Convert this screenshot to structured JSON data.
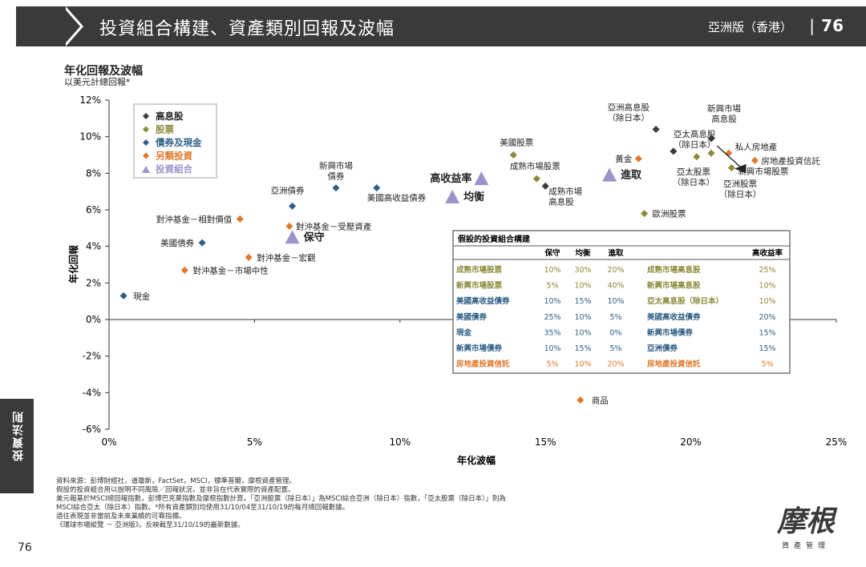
{
  "header": {
    "title": "投資組合構建、資產類別回報及波幅",
    "edition": "亞洲版（香港）",
    "separator": "|",
    "page_number": "76"
  },
  "side_tab": "投資法則",
  "footer_page": "76",
  "notes": [
    "資料來源：彭博財經社，道瓊斯，FactSet，MSCI，標準普爾，摩根資產管理。",
    "假設的投資組合用以說明不同風險／回報狀況，並非旨在代表實際的資產配置。",
    "美元報基於MSCI總回報指數，彭博巴克萊指數及摩根指數計算。「亞洲股票（除日本）」為MSCI綜合亞洲（除日本）指數，「亞太股票（除日本）」則為",
    "MSCI綜合亞太（除日本）指數。*所有資產類別均使用31/10/04至31/10/19的每月總回報數據。",
    "過往表現並非當前及未來業績的可靠指標。",
    "《環球市場縱覽 － 亞洲版》。反映截至31/10/19的最新數據。"
  ],
  "logo": {
    "main": "摩根",
    "sub": "資產管理"
  },
  "colors": {
    "high_div": "#3a3a3a",
    "equity": "#8a8a3a",
    "bonds_cash": "#2f5f86",
    "alternatives": "#e0782a",
    "portfolio": "#9c94c8",
    "header": "#3a3a3a"
  },
  "chart_data": {
    "type": "scatter",
    "title": "年化回報及波幅",
    "subtitle": "以美元計總回報*",
    "xlabel": "年化波幅",
    "ylabel": "年化回報",
    "xlim": [
      0,
      25
    ],
    "ylim": [
      -6,
      12
    ],
    "x_ticks": [
      "0%",
      "5%",
      "10%",
      "15%",
      "20%",
      "25%"
    ],
    "y_ticks": [
      "-6%",
      "-4%",
      "-2%",
      "0%",
      "2%",
      "4%",
      "6%",
      "8%",
      "10%",
      "12%"
    ],
    "legend": {
      "placement": "top-left",
      "items": [
        {
          "label": "高息股",
          "category": "high_div"
        },
        {
          "label": "股票",
          "category": "equity"
        },
        {
          "label": "債券及現金",
          "category": "bonds_cash"
        },
        {
          "label": "另類投資",
          "category": "alternatives"
        },
        {
          "label": "投資組合",
          "category": "portfolio"
        }
      ]
    },
    "points": [
      {
        "label": "現金",
        "x": 0.5,
        "y": 1.3,
        "category": "bonds_cash"
      },
      {
        "label": "美國債券",
        "x": 3.2,
        "y": 4.2,
        "category": "bonds_cash"
      },
      {
        "label": "亞洲債券",
        "x": 6.3,
        "y": 6.2,
        "category": "bonds_cash"
      },
      {
        "label": "新興市場\n債券",
        "x": 7.8,
        "y": 7.2,
        "category": "bonds_cash"
      },
      {
        "label": "美國高收益債券",
        "x": 9.2,
        "y": 7.2,
        "category": "bonds_cash"
      },
      {
        "label": "對沖基金－相對價值",
        "x": 4.5,
        "y": 5.5,
        "category": "alternatives"
      },
      {
        "label": "對沖基金－受壓資產",
        "x": 6.2,
        "y": 5.1,
        "category": "alternatives"
      },
      {
        "label": "對沖基金－宏觀",
        "x": 4.8,
        "y": 3.4,
        "category": "alternatives"
      },
      {
        "label": "對沖基金－市場中性",
        "x": 2.6,
        "y": 2.7,
        "category": "alternatives"
      },
      {
        "label": "黃金",
        "x": 18.2,
        "y": 8.8,
        "category": "alternatives"
      },
      {
        "label": "私人房地產",
        "x": 21.3,
        "y": 9.1,
        "category": "alternatives"
      },
      {
        "label": "房地產投資信託",
        "x": 22.2,
        "y": 8.7,
        "category": "alternatives"
      },
      {
        "label": "商品",
        "x": 16.2,
        "y": -4.4,
        "category": "alternatives"
      },
      {
        "label": "美國股票",
        "x": 13.9,
        "y": 9.0,
        "category": "equity"
      },
      {
        "label": "成熟市場股票",
        "x": 14.7,
        "y": 7.7,
        "category": "equity"
      },
      {
        "label": "歐洲股票",
        "x": 18.4,
        "y": 5.8,
        "category": "equity"
      },
      {
        "label": "亞太股票\n（除日本）",
        "x": 20.2,
        "y": 8.9,
        "category": "equity"
      },
      {
        "label": "新興市場股票",
        "x": 21.4,
        "y": 8.3,
        "category": "equity"
      },
      {
        "label": "亞洲股票\n（除日本）",
        "x": 20.7,
        "y": 9.1,
        "category": "equity"
      },
      {
        "label": "亞洲高息股\n（除日本）",
        "x": 18.8,
        "y": 10.4,
        "category": "high_div"
      },
      {
        "label": "亞太高息股\n（除日本）",
        "x": 19.4,
        "y": 9.2,
        "category": "high_div"
      },
      {
        "label": "新興市場\n高息股",
        "x": 20.7,
        "y": 9.9,
        "category": "high_div"
      },
      {
        "label": "成熟市場\n高息股",
        "x": 15.0,
        "y": 7.3,
        "category": "high_div"
      },
      {
        "label": "保守",
        "x": 6.3,
        "y": 4.5,
        "category": "portfolio"
      },
      {
        "label": "均衡",
        "x": 11.8,
        "y": 6.7,
        "category": "portfolio"
      },
      {
        "label": "進取",
        "x": 17.2,
        "y": 7.9,
        "category": "portfolio"
      },
      {
        "label": "高收益率",
        "x": 12.8,
        "y": 7.7,
        "category": "portfolio"
      }
    ],
    "table": {
      "title": "假設的投資組合構建",
      "headers": [
        "",
        "保守",
        "均衡",
        "進取",
        "",
        "高收益率"
      ],
      "rows": [
        {
          "name": "成熟市場股票",
          "c": "equity",
          "v": [
            "10%",
            "30%",
            "20%"
          ],
          "name2": "成熟市場高息股",
          "c2": "equity",
          "v2": "25%"
        },
        {
          "name": "新興市場股票",
          "c": "equity",
          "v": [
            "5%",
            "10%",
            "40%"
          ],
          "name2": "新興市場高息股",
          "c2": "equity",
          "v2": "10%"
        },
        {
          "name": "美國高收益債券",
          "c": "bonds_cash",
          "v": [
            "10%",
            "15%",
            "10%"
          ],
          "name2": "亞太高息股（除日本）",
          "c2": "equity",
          "v2": "10%"
        },
        {
          "name": "美國債券",
          "c": "bonds_cash",
          "v": [
            "25%",
            "10%",
            "5%"
          ],
          "name2": "美國高收益債券",
          "c2": "bonds_cash",
          "v2": "20%"
        },
        {
          "name": "現金",
          "c": "bonds_cash",
          "v": [
            "35%",
            "10%",
            "0%"
          ],
          "name2": "新興市場債券",
          "c2": "bonds_cash",
          "v2": "15%"
        },
        {
          "name": "新興市場債券",
          "c": "bonds_cash",
          "v": [
            "10%",
            "15%",
            "5%"
          ],
          "name2": "亞洲債券",
          "c2": "bonds_cash",
          "v2": "15%"
        },
        {
          "name": "房地產投資信託",
          "c": "alternatives",
          "v": [
            "5%",
            "10%",
            "20%"
          ],
          "name2": "房地產投資信託",
          "c2": "alternatives",
          "v2": "5%"
        }
      ]
    }
  }
}
